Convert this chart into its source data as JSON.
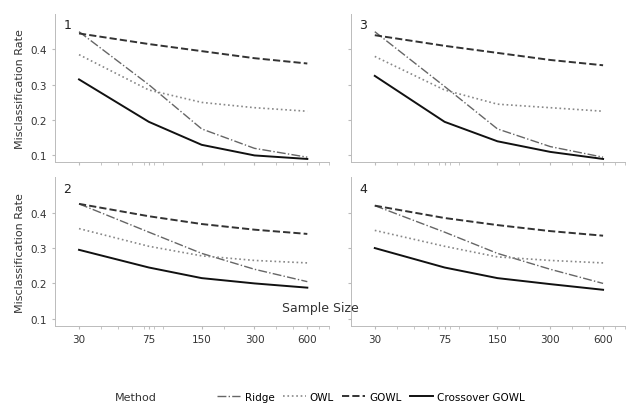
{
  "x": [
    30,
    75,
    150,
    300,
    600
  ],
  "panels": {
    "1": {
      "Ridge": [
        0.45,
        0.3,
        0.175,
        0.12,
        0.095
      ],
      "OWL": [
        0.385,
        0.285,
        0.25,
        0.235,
        0.225
      ],
      "GOWL": [
        0.445,
        0.415,
        0.395,
        0.375,
        0.36
      ],
      "Crossover GOWL": [
        0.315,
        0.195,
        0.13,
        0.1,
        0.09
      ]
    },
    "2": {
      "Ridge": [
        0.425,
        0.345,
        0.285,
        0.24,
        0.205
      ],
      "OWL": [
        0.355,
        0.305,
        0.278,
        0.265,
        0.258
      ],
      "GOWL": [
        0.425,
        0.39,
        0.368,
        0.352,
        0.34
      ],
      "Crossover GOWL": [
        0.295,
        0.245,
        0.215,
        0.2,
        0.188
      ]
    },
    "3": {
      "Ridge": [
        0.45,
        0.295,
        0.175,
        0.125,
        0.095
      ],
      "OWL": [
        0.38,
        0.285,
        0.245,
        0.235,
        0.225
      ],
      "GOWL": [
        0.44,
        0.41,
        0.39,
        0.37,
        0.355
      ],
      "Crossover GOWL": [
        0.325,
        0.195,
        0.14,
        0.11,
        0.09
      ]
    },
    "4": {
      "Ridge": [
        0.42,
        0.345,
        0.285,
        0.24,
        0.2
      ],
      "OWL": [
        0.35,
        0.305,
        0.275,
        0.265,
        0.258
      ],
      "GOWL": [
        0.42,
        0.385,
        0.365,
        0.348,
        0.335
      ],
      "Crossover GOWL": [
        0.3,
        0.245,
        0.215,
        0.198,
        0.182
      ]
    }
  },
  "line_styles": {
    "Ridge": {
      "linestyle": "-.",
      "color": "#666666",
      "linewidth": 1.0
    },
    "OWL": {
      "linestyle": ":",
      "color": "#888888",
      "linewidth": 1.2
    },
    "GOWL": {
      "linestyle": "--",
      "color": "#333333",
      "linewidth": 1.4
    },
    "Crossover GOWL": {
      "linestyle": "-",
      "color": "#111111",
      "linewidth": 1.4
    }
  },
  "panel_order": [
    "1",
    "3",
    "2",
    "4"
  ],
  "xlabel": "Sample Size",
  "ylabel": "Misclassification Rate",
  "xticks": [
    30,
    75,
    150,
    300,
    600
  ],
  "ylim": [
    0.08,
    0.5
  ],
  "yticks": [
    0.1,
    0.2,
    0.3,
    0.4
  ],
  "background_color": "#ffffff",
  "legend_entries": [
    "Ridge",
    "OWL",
    "GOWL",
    "Crossover GOWL"
  ]
}
